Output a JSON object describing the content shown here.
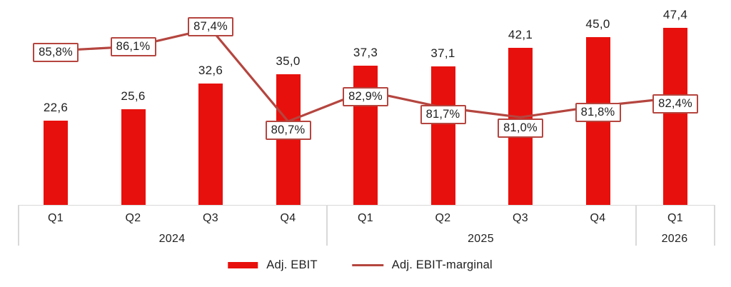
{
  "colors": {
    "bar": "#e8100c",
    "line": "#b5453f",
    "axis": "#d9d9d9",
    "text": "#1f1f1f",
    "box_fill": "#ffffff"
  },
  "chart_data": {
    "type": "bar",
    "categories": [
      "Q1",
      "Q2",
      "Q3",
      "Q4",
      "Q1",
      "Q2",
      "Q3",
      "Q4",
      "Q1"
    ],
    "year_groups": [
      {
        "label": "2024",
        "count": 4
      },
      {
        "label": "2025",
        "count": 4
      },
      {
        "label": "2026",
        "count": 1
      }
    ],
    "series": [
      {
        "name": "Adj. EBIT",
        "type": "bar",
        "color": "#e8100c",
        "values": [
          22.6,
          25.6,
          32.6,
          35.0,
          37.3,
          37.1,
          42.1,
          45.0,
          47.4
        ],
        "labels": [
          "22,6",
          "25,6",
          "32,6",
          "35,0",
          "37,3",
          "37,1",
          "42,1",
          "45,0",
          "47,4"
        ]
      },
      {
        "name": "Adj. EBIT-marginal",
        "type": "line",
        "color": "#b5453f",
        "values": [
          85.8,
          86.1,
          87.4,
          80.7,
          82.9,
          81.7,
          81.0,
          81.8,
          82.4
        ],
        "labels": [
          "85,8%",
          "86,1%",
          "87,4%",
          "80,7%",
          "82,9%",
          "81,7%",
          "81,0%",
          "81,8%",
          "82,4%"
        ]
      }
    ],
    "legend": [
      {
        "label": "Adj. EBIT",
        "swatch": "bar"
      },
      {
        "label": "Adj. EBIT-marginal",
        "swatch": "line"
      }
    ],
    "grid": false,
    "legend_position": "bottom-center",
    "value_axis_visible": false,
    "decimal_separator": ","
  }
}
